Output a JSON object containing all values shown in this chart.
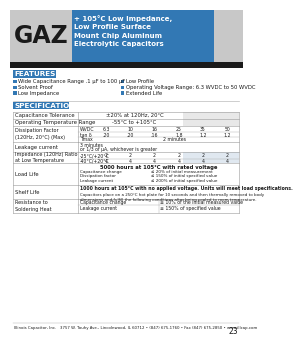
{
  "title_series": "GAZ",
  "title_desc": "+ 105°C Low Impedance,\nLow Profile Surface\nMount Chip Aluminum\nElectrolytic Capacitors",
  "header_bg": "#3278b4",
  "header_left_bg": "#c8c8c8",
  "dark_bar_bg": "#1a1a1a",
  "features_label": "FEATURES",
  "features_items_left": [
    "Wide Capacitance Range .1 µF to 100 µF",
    "Solvent Proof",
    "Low Impedance"
  ],
  "features_items_right": [
    "Low Profile",
    "Operating Voltage Range: 6.3 WVDC to 50 WVDC",
    "Extended Life"
  ],
  "specs_label": "SPECIFICATIONS",
  "footer_text": "Illinois Capacitor, Inc.   3757 W. Touhy Ave., Lincolnwood, IL 60712 • (847) 675-1760 • Fax (847) 675-2850 • www.illcap.com",
  "page_number": "23",
  "bg_color": "#ffffff",
  "blue_bullet": "#3278b4",
  "wvdc_vals": [
    "6.3",
    "10",
    "16",
    "25",
    "35",
    "50"
  ],
  "tan_vals": [
    ".20",
    ".20",
    ".16",
    "1.8",
    "1.2",
    "1.2"
  ],
  "imp_row1": [
    "-25°C/+20°C",
    "2",
    "2",
    "2",
    "2",
    "2",
    "2"
  ],
  "imp_row2": [
    "-40°C/+20°C",
    "4",
    "4",
    "4",
    "4",
    "4",
    "4"
  ],
  "load_life_main": "5000 hours at 105°C with rated voltage",
  "load_sub_labels": [
    "Capacitance change",
    "Dissipation factor",
    "Leakage current"
  ],
  "load_sub_values": [
    "≤ 20% of initial measurement",
    "≤ 150% of initial specified value",
    "≤ 200% of initial specified value"
  ],
  "shelf_life_main": "1000 hours at 105°C with no applied voltage. Units will meet load specifications.",
  "shelf_life_sub": "Capacitors place on a 250°C hot plate for 10 seconds and then thermally removed to body\ndimensions and fulfill the following conditions after being cooled to room temperature.",
  "soldering_labels": [
    "Capacitance change",
    "Leakage current"
  ],
  "soldering_values": [
    "≤ 10% of the initial measured value",
    "≤ 150% of specified value"
  ]
}
